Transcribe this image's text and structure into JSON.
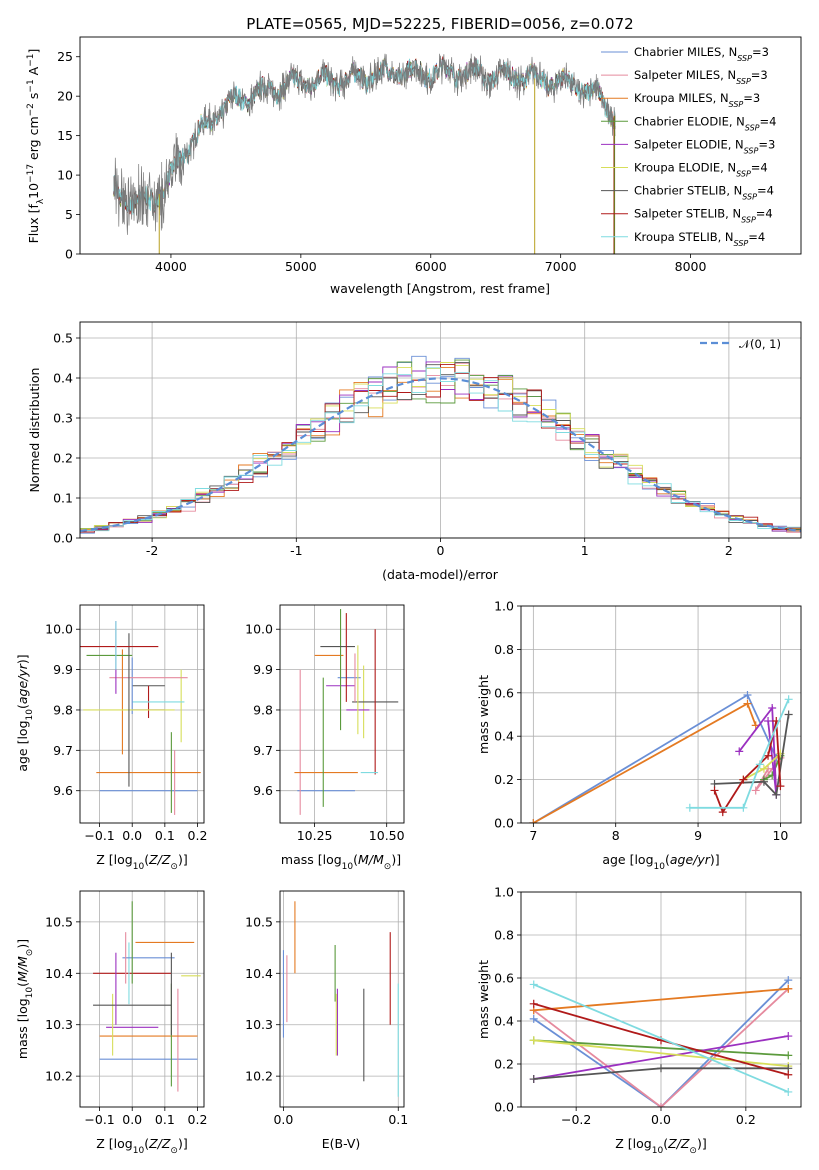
{
  "colors": [
    "#6a8fd6",
    "#e58a9e",
    "#e47a22",
    "#5b9a3c",
    "#9b30c0",
    "#d7de5a",
    "#555555",
    "#b01a1a",
    "#7fdbe0"
  ],
  "chart_data": [
    {
      "type": "line",
      "title": "PLATE=0565, MJD=52225, FIBERID=0056, z=0.072",
      "xlabel": "wavelength [Angstrom, rest frame]",
      "ylabel": "Flux [fλ10⁻¹⁷ erg cm⁻² s⁻¹ A⁻¹]",
      "xlim": [
        3300,
        8850
      ],
      "ylim": [
        0,
        27.5
      ],
      "xticks": [
        4000,
        5000,
        6000,
        7000,
        8000
      ],
      "yticks": [
        0,
        5,
        10,
        15,
        20,
        25
      ],
      "grid": false,
      "legend_position": "right",
      "series": [
        {
          "name": "Chabrier MILES, N_SSP=3"
        },
        {
          "name": "Salpeter MILES, N_SSP=3"
        },
        {
          "name": "Kroupa MILES, N_SSP=3"
        },
        {
          "name": "Chabrier ELODIE, N_SSP=4"
        },
        {
          "name": "Salpeter ELODIE, N_SSP=3"
        },
        {
          "name": "Kroupa ELODIE, N_SSP=4"
        },
        {
          "name": "Chabrier STELIB, N_SSP=4"
        },
        {
          "name": "Salpeter STELIB, N_SSP=4"
        },
        {
          "name": "Kroupa STELIB, N_SSP=4"
        }
      ],
      "continuum": {
        "x": [
          3550,
          3650,
          3750,
          3850,
          3950,
          4100,
          4300,
          4500,
          4700,
          4900,
          5100,
          5300,
          5500,
          5700,
          5900,
          6100,
          6300,
          6500,
          6700,
          6900,
          7100,
          7300,
          7400
        ],
        "y": [
          8,
          7,
          6.5,
          7,
          8,
          13,
          17,
          19.5,
          20.5,
          21.5,
          22,
          22,
          22.5,
          23,
          23,
          23,
          23,
          22.5,
          22.5,
          22,
          21.5,
          20,
          17.5
        ]
      }
    },
    {
      "type": "bar",
      "xlabel": "(data-model)/error",
      "ylabel": "Normed distribution",
      "xlim": [
        -2.5,
        2.5
      ],
      "ylim": [
        0,
        0.54
      ],
      "xticks": [
        -2,
        -1,
        0,
        1,
        2
      ],
      "yticks": [
        0.0,
        0.1,
        0.2,
        0.3,
        0.4,
        0.5
      ],
      "grid": true,
      "legend_position": "top-right",
      "reference": {
        "name": "𝒩(0, 1)",
        "mean": 0,
        "sd": 1
      }
    },
    {
      "type": "scatter",
      "xlabel": "Z [log₁₀(Z/Z⊙)]",
      "ylabel": "age  [log₁₀(age/yr)]",
      "xlim": [
        -0.16,
        0.22
      ],
      "ylim": [
        9.52,
        10.06
      ],
      "xticks": [
        -0.1,
        0.0,
        0.1,
        0.2
      ],
      "xtick_labels": [
        "−0.1",
        "0.0",
        "0.1",
        "0.2"
      ],
      "yticks": [
        9.6,
        9.7,
        9.8,
        9.9,
        10.0
      ],
      "grid": true,
      "points": [
        {
          "x": 0.05,
          "y": 9.6,
          "xerr": 0.15,
          "yerr": 0
        },
        {
          "x": 0.13,
          "y": 9.62,
          "xerr": 0,
          "yerr": 0.08
        },
        {
          "x": 0.05,
          "y": 9.645,
          "xerr": 0.16,
          "yerr": 0
        },
        {
          "x": 0.12,
          "y": 9.645,
          "xerr": 0,
          "yerr": 0.1
        },
        {
          "x": 0.05,
          "y": 9.8,
          "xerr": 0.05,
          "yerr": 0
        },
        {
          "x": 0.15,
          "y": 9.81,
          "xerr": 0,
          "yerr": 0.09
        },
        {
          "x": 0.05,
          "y": 9.86,
          "xerr": 0.05,
          "yerr": 0
        },
        {
          "x": 0.05,
          "y": 9.82,
          "xerr": 0,
          "yerr": 0.04
        },
        {
          "x": 0.08,
          "y": 9.82,
          "xerr": 0.08,
          "yerr": 0
        },
        {
          "x": 0.0,
          "y": 9.86,
          "xerr": 0,
          "yerr": 0.07
        },
        {
          "x": 0.05,
          "y": 9.88,
          "xerr": 0.12,
          "yerr": 0
        },
        {
          "x": -0.03,
          "y": 9.82,
          "xerr": 0,
          "yerr": 0.13
        },
        {
          "x": -0.07,
          "y": 9.935,
          "xerr": 0.07,
          "yerr": 0
        },
        {
          "x": -0.05,
          "y": 9.93,
          "xerr": 0,
          "yerr": 0.09
        },
        {
          "x": -0.01,
          "y": 9.8,
          "xerr": 0.14,
          "yerr": 0
        },
        {
          "x": -0.01,
          "y": 9.8,
          "xerr": 0,
          "yerr": 0.19
        },
        {
          "x": -0.04,
          "y": 9.957,
          "xerr": 0.12,
          "yerr": 0
        },
        {
          "x": -0.05,
          "y": 9.96,
          "xerr": 0,
          "yerr": 0.06
        }
      ]
    },
    {
      "type": "scatter",
      "xlabel": "mass [log₁₀(M/M⊙)]",
      "xlim": [
        10.13,
        10.56
      ],
      "ylim": [
        9.52,
        10.06
      ],
      "xticks": [
        10.25,
        10.5
      ],
      "xtick_labels": [
        "10.25",
        "10.50"
      ],
      "yticks": [
        9.6,
        9.7,
        9.8,
        9.9,
        10.0
      ],
      "grid": true,
      "points": [
        {
          "x": 10.29,
          "y": 9.6,
          "xerr": 0.1,
          "yerr": 0
        },
        {
          "x": 10.2,
          "y": 9.72,
          "xerr": 0,
          "yerr": 0.18
        },
        {
          "x": 10.29,
          "y": 9.645,
          "xerr": 0.11,
          "yerr": 0
        },
        {
          "x": 10.28,
          "y": 9.72,
          "xerr": 0,
          "yerr": 0.16
        },
        {
          "x": 10.34,
          "y": 9.86,
          "xerr": 0.05,
          "yerr": 0
        },
        {
          "x": 10.42,
          "y": 9.82,
          "xerr": 0,
          "yerr": 0.09
        },
        {
          "x": 10.46,
          "y": 9.82,
          "xerr": 0.08,
          "yerr": 0
        },
        {
          "x": 10.46,
          "y": 9.82,
          "xerr": 0,
          "yerr": 0.18
        },
        {
          "x": 10.44,
          "y": 9.645,
          "xerr": 0.03,
          "yerr": 0
        },
        {
          "x": 10.37,
          "y": 9.88,
          "xerr": 0.04,
          "yerr": 0
        },
        {
          "x": 10.39,
          "y": 9.88,
          "xerr": 0,
          "yerr": 0.06
        },
        {
          "x": 10.3,
          "y": 9.935,
          "xerr": 0.05,
          "yerr": 0
        },
        {
          "x": 10.34,
          "y": 9.9,
          "xerr": 0,
          "yerr": 0.15
        },
        {
          "x": 10.4,
          "y": 9.8,
          "xerr": 0.04,
          "yerr": 0
        },
        {
          "x": 10.4,
          "y": 9.85,
          "xerr": 0,
          "yerr": 0.11
        },
        {
          "x": 10.33,
          "y": 9.957,
          "xerr": 0.06,
          "yerr": 0
        },
        {
          "x": 10.36,
          "y": 9.93,
          "xerr": 0,
          "yerr": 0.11
        }
      ]
    },
    {
      "type": "line",
      "xlabel": "age  [log₁₀(age/yr)]",
      "ylabel": "mass weight",
      "xlim": [
        6.85,
        10.25
      ],
      "ylim": [
        0,
        1.0
      ],
      "xticks": [
        7,
        8,
        9,
        10
      ],
      "yticks": [
        0.0,
        0.2,
        0.4,
        0.6,
        0.8,
        1.0
      ],
      "grid": true,
      "series": [
        {
          "x": [
            7.0,
            9.6,
            9.95
          ],
          "y": [
            0.0,
            0.59,
            0.3
          ]
        },
        {
          "x": [
            9.85,
            9.7,
            10.0
          ],
          "y": [
            0.25,
            0.15,
            0.3
          ]
        },
        {
          "x": [
            7.0,
            9.6,
            9.7
          ],
          "y": [
            0.0,
            0.55,
            0.45
          ]
        },
        {
          "x": [
            9.8,
            9.9,
            10.0
          ],
          "y": [
            0.2,
            0.22,
            0.31
          ]
        },
        {
          "x": [
            9.5,
            9.9,
            9.95,
            9.85
          ],
          "y": [
            0.33,
            0.53,
            0.13,
            0.47
          ]
        },
        {
          "x": [
            9.55,
            9.8,
            10.0
          ],
          "y": [
            0.2,
            0.25,
            0.32
          ]
        },
        {
          "x": [
            9.2,
            9.8,
            9.95,
            10.1
          ],
          "y": [
            0.18,
            0.19,
            0.13,
            0.5
          ]
        },
        {
          "x": [
            9.2,
            9.3,
            9.55,
            9.85,
            9.95,
            10.0
          ],
          "y": [
            0.15,
            0.05,
            0.2,
            0.31,
            0.47,
            0.17
          ]
        },
        {
          "x": [
            8.9,
            9.55,
            9.75,
            10.1
          ],
          "y": [
            0.07,
            0.07,
            0.27,
            0.57
          ]
        }
      ]
    },
    {
      "type": "scatter",
      "xlabel": "Z [log₁₀(Z/Z⊙)]",
      "ylabel": "mass [log₁₀(M/M⊙)]",
      "xlim": [
        -0.16,
        0.22
      ],
      "ylim": [
        10.14,
        10.56
      ],
      "xticks": [
        -0.1,
        0.0,
        0.1,
        0.2
      ],
      "xtick_labels": [
        "−0.1",
        "0.0",
        "0.1",
        "0.2"
      ],
      "yticks": [
        10.2,
        10.3,
        10.4,
        10.5
      ],
      "grid": true,
      "points": [
        {
          "x": 0.05,
          "y": 10.233,
          "xerr": 0.15,
          "yerr": 0
        },
        {
          "x": 0.14,
          "y": 10.27,
          "xerr": 0,
          "yerr": 0.1
        },
        {
          "x": 0.05,
          "y": 10.278,
          "xerr": 0.15,
          "yerr": 0
        },
        {
          "x": 0.12,
          "y": 10.28,
          "xerr": 0,
          "yerr": 0.1
        },
        {
          "x": 0.0,
          "y": 10.295,
          "xerr": 0.08,
          "yerr": 0
        },
        {
          "x": -0.06,
          "y": 10.3,
          "xerr": 0,
          "yerr": 0.06
        },
        {
          "x": 0.0,
          "y": 10.338,
          "xerr": 0.12,
          "yerr": 0
        },
        {
          "x": 0.0,
          "y": 10.4,
          "xerr": 0.12,
          "yerr": 0
        },
        {
          "x": -0.01,
          "y": 10.4,
          "xerr": 0,
          "yerr": 0.06
        },
        {
          "x": 0.05,
          "y": 10.43,
          "xerr": 0.08,
          "yerr": 0
        },
        {
          "x": -0.02,
          "y": 10.43,
          "xerr": 0,
          "yerr": 0.05
        },
        {
          "x": 0.1,
          "y": 10.46,
          "xerr": 0.09,
          "yerr": 0
        },
        {
          "x": 0.0,
          "y": 10.46,
          "xerr": 0,
          "yerr": 0.08
        },
        {
          "x": -0.05,
          "y": 10.37,
          "xerr": 0,
          "yerr": 0.07
        },
        {
          "x": 0.18,
          "y": 10.395,
          "xerr": 0.03,
          "yerr": 0
        },
        {
          "x": 0.12,
          "y": 10.36,
          "xerr": 0,
          "yerr": 0.08
        }
      ]
    },
    {
      "type": "scatter",
      "xlabel": "E(B-V)",
      "xlim": [
        -0.003,
        0.105
      ],
      "ylim": [
        10.14,
        10.56
      ],
      "xticks": [
        0.0,
        0.1
      ],
      "xtick_labels": [
        "0.0",
        "0.1"
      ],
      "yticks": [
        10.2,
        10.3,
        10.4,
        10.5
      ],
      "grid": true,
      "points": [
        {
          "x": 0.0,
          "y": 10.36,
          "xerr": 0,
          "yerr": 0.085
        },
        {
          "x": 0.003,
          "y": 10.37,
          "xerr": 0,
          "yerr": 0.065
        },
        {
          "x": 0.01,
          "y": 10.47,
          "xerr": 0,
          "yerr": 0.07
        },
        {
          "x": 0.045,
          "y": 10.4,
          "xerr": 0,
          "yerr": 0.055
        },
        {
          "x": 0.047,
          "y": 10.305,
          "xerr": 0,
          "yerr": 0.065
        },
        {
          "x": 0.046,
          "y": 10.3,
          "xerr": 0,
          "yerr": 0.06
        },
        {
          "x": 0.07,
          "y": 10.28,
          "xerr": 0,
          "yerr": 0.09
        },
        {
          "x": 0.093,
          "y": 10.39,
          "xerr": 0,
          "yerr": 0.09
        },
        {
          "x": 0.1,
          "y": 10.27,
          "xerr": 0,
          "yerr": 0.11
        }
      ]
    },
    {
      "type": "line",
      "xlabel": "Z [log₁₀(Z/Z⊙)]",
      "ylabel": "mass weight",
      "xlim": [
        -0.33,
        0.33
      ],
      "ylim": [
        0,
        1.0
      ],
      "xticks": [
        -0.2,
        0.0,
        0.2
      ],
      "xtick_labels": [
        "−0.2",
        "0.0",
        "0.2"
      ],
      "yticks": [
        0.0,
        0.2,
        0.4,
        0.6,
        0.8,
        1.0
      ],
      "grid": true,
      "series": [
        {
          "x": [
            -0.3,
            0.0,
            0.3
          ],
          "y": [
            0.41,
            0.0,
            0.59
          ]
        },
        {
          "x": [
            -0.3,
            0.0,
            0.3
          ],
          "y": [
            0.45,
            0.0,
            0.55
          ]
        },
        {
          "x": [
            -0.3,
            0.3
          ],
          "y": [
            0.45,
            0.55
          ]
        },
        {
          "x": [
            -0.3,
            0.3
          ],
          "y": [
            0.31,
            0.24
          ]
        },
        {
          "x": [
            -0.3,
            0.3
          ],
          "y": [
            0.13,
            0.33
          ]
        },
        {
          "x": [
            -0.3,
            0.3
          ],
          "y": [
            0.31,
            0.19
          ]
        },
        {
          "x": [
            -0.3,
            0.0,
            0.3
          ],
          "y": [
            0.13,
            0.18,
            0.18
          ]
        },
        {
          "x": [
            -0.3,
            0.0,
            0.3
          ],
          "y": [
            0.48,
            0.31,
            0.15
          ]
        },
        {
          "x": [
            -0.3,
            0.3
          ],
          "y": [
            0.57,
            0.07
          ]
        }
      ]
    }
  ]
}
